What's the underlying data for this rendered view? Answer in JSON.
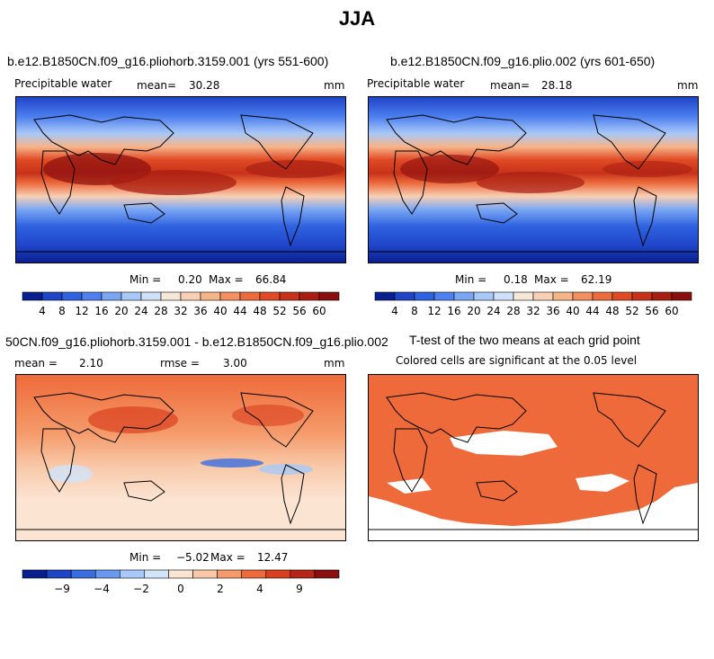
{
  "page_title": "JJA",
  "panels": {
    "p1": {
      "case_title": "b.e12.B1850CN.f09_g16.pliohorb.3159.001 (yrs 551-600)",
      "variable": "Precipitable water",
      "mean_label": "mean=",
      "mean_value": "30.28",
      "units": "mm",
      "min_label": "Min =",
      "min_value": "0.20",
      "max_label": "Max =",
      "max_value": "66.84"
    },
    "p2": {
      "case_title": "b.e12.B1850CN.f09_g16.plio.002 (yrs 601-650)",
      "variable": "Precipitable water",
      "mean_label": "mean=",
      "mean_value": "28.18",
      "units": "mm",
      "min_label": "Min =",
      "min_value": "0.18",
      "max_label": "Max =",
      "max_value": "62.19"
    },
    "p3": {
      "case_title": "50CN.f09_g16.pliohorb.3159.001 - b.e12.B1850CN.f09_g16.plio.002",
      "mean_label": "mean =",
      "mean_value": "2.10",
      "rmse_label": "rmse =",
      "rmse_value": "3.00",
      "units": "mm",
      "min_label": "Min =",
      "min_value": "−5.02",
      "max_label": "Max =",
      "max_value": "12.47"
    },
    "p4": {
      "case_title": "T-test of the two means at each grid point",
      "subtitle": "Colored cells are significant at the 0.05 level"
    }
  },
  "colorbars": {
    "abs": {
      "colors": [
        "#0a1f8f",
        "#1f44c8",
        "#2f63e0",
        "#4e80ef",
        "#7aa6f4",
        "#a8c8f8",
        "#cfe0fa",
        "#f6e8d8",
        "#f8d0b5",
        "#f6b48a",
        "#f29060",
        "#ec6b3c",
        "#e04a24",
        "#c8321a",
        "#a81e12",
        "#8a0e0e"
      ],
      "labels": [
        "4",
        "8",
        "12",
        "16",
        "20",
        "24",
        "28",
        "32",
        "36",
        "40",
        "44",
        "48",
        "52",
        "56",
        "60"
      ]
    },
    "diff": {
      "colors": [
        "#0a1f8f",
        "#1f44c8",
        "#3a6ee0",
        "#6a98f0",
        "#a8c8f8",
        "#d0e4fa",
        "#fbe4d2",
        "#f8c8a8",
        "#f59a6a",
        "#ee6a3a",
        "#d8401e",
        "#b8261a",
        "#8a0e0e"
      ],
      "labels": [
        "−9",
        "−4",
        "−2",
        "0",
        "2",
        "4",
        "9"
      ]
    }
  },
  "chart_data": [
    {
      "type": "heatmap",
      "title": "b.e12.B1850CN.f09_g16.pliohorb.3159.001 (yrs 551-600)",
      "variable": "Precipitable water",
      "units": "mm",
      "mean": 30.28,
      "min": 0.2,
      "max": 66.84,
      "contour_levels": [
        4,
        8,
        12,
        16,
        20,
        24,
        28,
        32,
        36,
        40,
        44,
        48,
        52,
        56,
        60
      ]
    },
    {
      "type": "heatmap",
      "title": "b.e12.B1850CN.f09_g16.plio.002 (yrs 601-650)",
      "variable": "Precipitable water",
      "units": "mm",
      "mean": 28.18,
      "min": 0.18,
      "max": 62.19,
      "contour_levels": [
        4,
        8,
        12,
        16,
        20,
        24,
        28,
        32,
        36,
        40,
        44,
        48,
        52,
        56,
        60
      ]
    },
    {
      "type": "heatmap",
      "title": "50CN.f09_g16.pliohorb.3159.001 - b.e12.B1850CN.f09_g16.plio.002",
      "units": "mm",
      "mean": 2.1,
      "rmse": 3.0,
      "min": -5.02,
      "max": 12.47,
      "colorbar_labels": [
        -9,
        -4,
        -2,
        0,
        2,
        4,
        9
      ]
    },
    {
      "type": "heatmap",
      "title": "T-test of the two means at each grid point",
      "subtitle": "Colored cells are significant at the 0.05 level",
      "significance_level": 0.05
    }
  ]
}
